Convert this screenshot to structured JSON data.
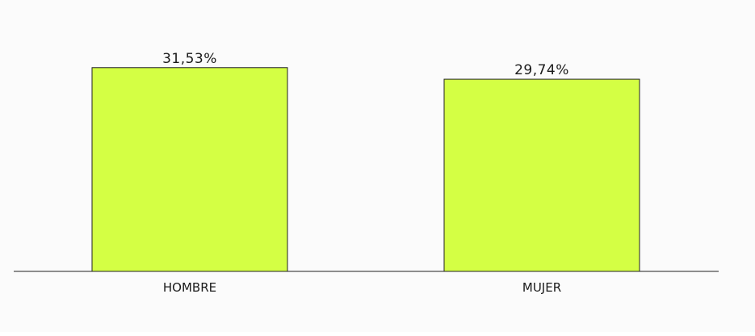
{
  "chart_data": {
    "type": "bar",
    "categories": [
      "HOMBRE",
      "MUJER"
    ],
    "values": [
      31.53,
      29.74
    ],
    "value_labels": [
      "31,53%",
      "29,74%"
    ],
    "title": "",
    "xlabel": "",
    "ylabel": "",
    "ylim": [
      0,
      34.5
    ],
    "grid": false,
    "legend": "none",
    "colors": {
      "bar_fill": "#d4ff44",
      "bar_stroke": "#222222",
      "axis": "#222222",
      "background": "#fbfbfb"
    }
  }
}
